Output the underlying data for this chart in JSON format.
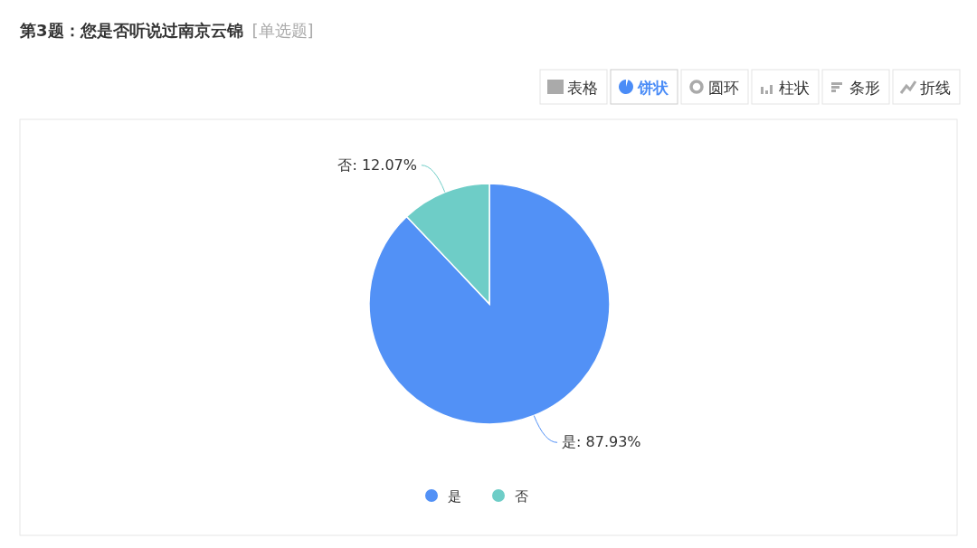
{
  "chart_data": {
    "type": "pie",
    "title": "第3题：您是否听说过南京云锦",
    "subtitle": "[单选题]",
    "categories": [
      "是",
      "否"
    ],
    "values": [
      87.93,
      12.07
    ],
    "value_labels": [
      "是: 87.93%",
      "否: 12.07%"
    ],
    "colors": [
      "#5291f6",
      "#6ecdc7"
    ],
    "legend": "bottom",
    "annotations": [
      "表格",
      "饼状",
      "圆环",
      "柱状",
      "条形",
      "折线"
    ]
  }
}
